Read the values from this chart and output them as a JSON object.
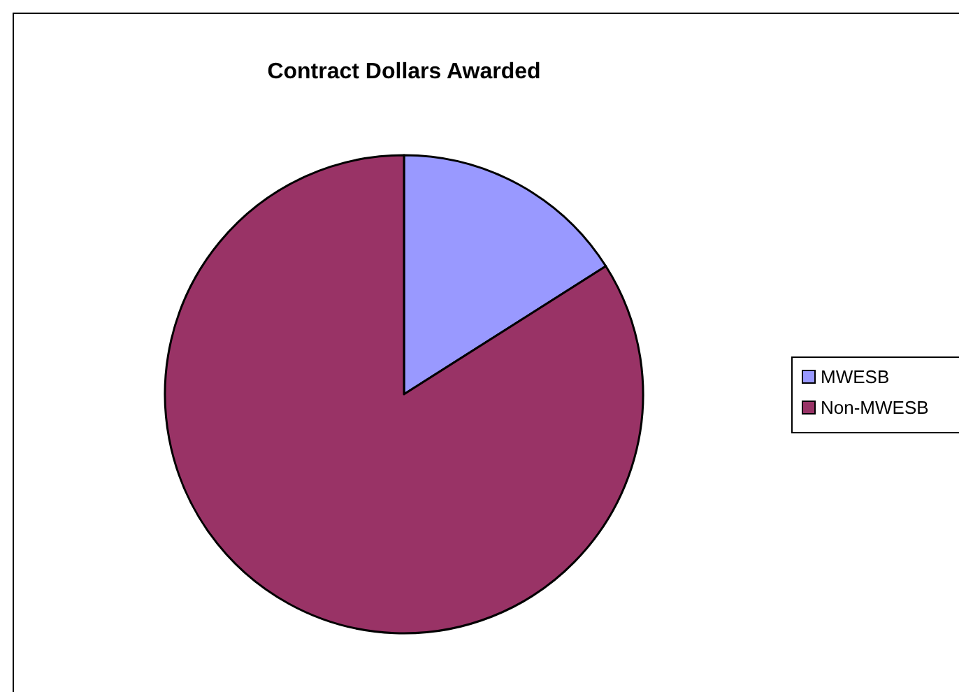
{
  "chart_data": {
    "type": "pie",
    "title": "Contract Dollars Awarded",
    "categories": [
      "MWESB",
      "Non-MWESB"
    ],
    "values": [
      16,
      84
    ],
    "colors": [
      "#9999ff",
      "#993366"
    ],
    "legend": "right"
  }
}
